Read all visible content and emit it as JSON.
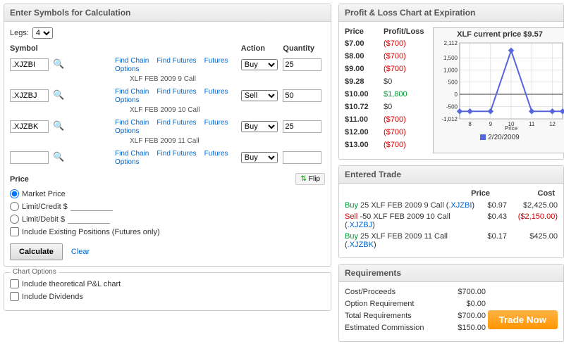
{
  "left": {
    "title": "Enter Symbols for Calculation",
    "legs_label": "Legs:",
    "legs_value": "4",
    "headers": {
      "symbol": "Symbol",
      "action": "Action",
      "quantity": "Quantity"
    },
    "links": {
      "find_chain": "Find Chain",
      "find_futures": "Find Futures",
      "futures_options": "Futures Options"
    },
    "rows": [
      {
        "symbol": ".XJZBI",
        "action": "Buy",
        "qty": "25",
        "desc": "XLF FEB 2009 9 Call"
      },
      {
        "symbol": ".XJZBJ",
        "action": "Sell",
        "qty": "50",
        "desc": "XLF FEB 2009 10 Call"
      },
      {
        "symbol": ".XJZBK",
        "action": "Buy",
        "qty": "25",
        "desc": "XLF FEB 2009 11 Call"
      },
      {
        "symbol": "",
        "action": "Buy",
        "qty": "",
        "desc": ""
      }
    ],
    "price_label": "Price",
    "flip_label": "Flip",
    "price_options": {
      "market": "Market Price",
      "credit": "Limit/Credit $",
      "debit": "Limit/Debit $"
    },
    "include_existing": "Include Existing Positions (Futures only)",
    "calculate": "Calculate",
    "clear": "Clear",
    "chart_options": {
      "title": "Chart Options",
      "theoretical": "Include theoretical P&L chart",
      "dividends": "Include Dividends"
    }
  },
  "plchart": {
    "title": "Profit & Loss Chart at Expiration",
    "headers": {
      "price": "Price",
      "pl": "Profit/Loss"
    },
    "rows": [
      {
        "price": "$7.00",
        "pl": "($700)",
        "cls": "loss"
      },
      {
        "price": "$8.00",
        "pl": "($700)",
        "cls": "loss"
      },
      {
        "price": "$9.00",
        "pl": "($700)",
        "cls": "loss"
      },
      {
        "price": "$9.28",
        "pl": "$0",
        "cls": ""
      },
      {
        "price": "$10.00",
        "pl": "$1,800",
        "cls": "gain"
      },
      {
        "price": "$10.72",
        "pl": "$0",
        "cls": ""
      },
      {
        "price": "$11.00",
        "pl": "($700)",
        "cls": "loss"
      },
      {
        "price": "$12.00",
        "pl": "($700)",
        "cls": "loss"
      },
      {
        "price": "$13.00",
        "pl": "($700)",
        "cls": "loss"
      }
    ],
    "chart": {
      "title": "XLF current price $9.57",
      "y_ticks": [
        "2,112",
        "1,500",
        "1,000",
        "500",
        "0",
        "-500",
        "-1,012"
      ],
      "x_ticks": [
        "8",
        "9",
        "10",
        "11",
        "12"
      ],
      "x_label": "Price",
      "legend": "2/20/2009",
      "line_color": "#5566dd",
      "marker_color": "#5566dd",
      "grid_color": "#cccccc",
      "bg_color": "#ffffff",
      "points": [
        {
          "x": 7.5,
          "y": -700
        },
        {
          "x": 8,
          "y": -700
        },
        {
          "x": 9,
          "y": -700
        },
        {
          "x": 10,
          "y": 1800
        },
        {
          "x": 11,
          "y": -700
        },
        {
          "x": 12,
          "y": -700
        },
        {
          "x": 12.5,
          "y": -700
        }
      ],
      "xlim": [
        7.5,
        12.5
      ],
      "ylim": [
        -1012,
        2112
      ]
    }
  },
  "entered": {
    "title": "Entered Trade",
    "headers": {
      "price": "Price",
      "cost": "Cost"
    },
    "rows": [
      {
        "side": "Buy",
        "side_cls": "buy",
        "desc": " 25 XLF FEB 2009 9 Call (",
        "sym": ".XJZBI",
        "price": "$0.97",
        "cost": "$2,425.00",
        "cost_cls": ""
      },
      {
        "side": "Sell",
        "side_cls": "sell",
        "desc": " -50 XLF FEB 2009 10 Call (",
        "sym": ".XJZBJ",
        "price": "$0.43",
        "cost": "($2,150.00)",
        "cost_cls": "loss"
      },
      {
        "side": "Buy",
        "side_cls": "buy",
        "desc": " 25 XLF FEB 2009 11 Call (",
        "sym": ".XJZBK",
        "price": "$0.17",
        "cost": "$425.00",
        "cost_cls": ""
      }
    ]
  },
  "req": {
    "title": "Requirements",
    "rows": [
      {
        "label": "Cost/Proceeds",
        "val": "$700.00"
      },
      {
        "label": "Option Requirement",
        "val": "$0.00"
      },
      {
        "label": "Total Requirements",
        "val": "$700.00"
      },
      {
        "label": "Estimated Commission",
        "val": "$150.00"
      }
    ],
    "trade_now": "Trade Now"
  }
}
